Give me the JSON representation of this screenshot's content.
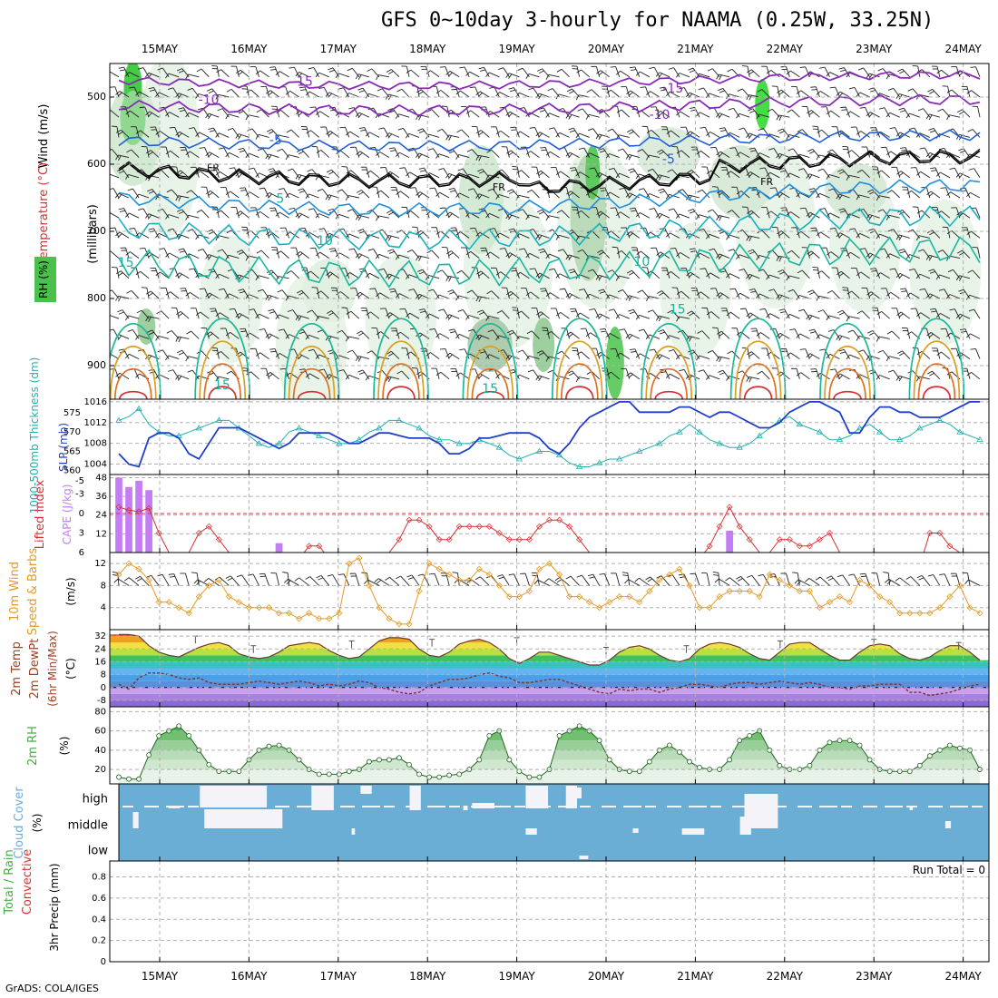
{
  "title": "GFS 0~10day 3-hourly for NAAMA (0.25W, 33.25N)",
  "credit": "GrADS: COLA/IGES",
  "colors": {
    "rh_green": "#3cbf3c",
    "temp_purple": "#8a2bb8",
    "temp_blue": "#1f5fd8",
    "freeze_black": "#000000",
    "slp_blue": "#1f3fc8",
    "thickness_cyan": "#20b0b0",
    "cape_violet": "#c57df5",
    "lifted_red": "#d83030",
    "wind_orange": "#e89a20",
    "cloud_blue": "#6aaed6",
    "cloud_white": "#f4f4f8",
    "rh2m_green": "#40b040"
  },
  "chart_data": [
    {
      "type": "line",
      "panel": "upper-air",
      "xticks": [
        "15MAY",
        "16MAY",
        "17MAY",
        "18MAY",
        "19MAY",
        "20MAY",
        "21MAY",
        "22MAY",
        "23MAY",
        "24MAY"
      ],
      "ylabel": "(millibars)",
      "yticks": [
        500,
        600,
        700,
        800,
        900
      ],
      "ylim": [
        450,
        950
      ],
      "legend": [
        "RH (%)",
        "Temperature (°C)",
        "Wind (m/s)"
      ],
      "isotherm_labels": [
        {
          "text": "-15",
          "x": 2.1,
          "y": 478
        },
        {
          "text": "-15",
          "x": 6.25,
          "y": 488
        },
        {
          "text": "-10",
          "x": 1.05,
          "y": 505
        },
        {
          "text": "-10",
          "x": 6.1,
          "y": 527
        },
        {
          "text": "-5",
          "x": 1.8,
          "y": 565
        },
        {
          "text": "-5",
          "x": 6.2,
          "y": 593
        },
        {
          "text": "FR",
          "x": 1.1,
          "y": 606
        },
        {
          "text": "FR",
          "x": 4.3,
          "y": 635
        },
        {
          "text": "FR",
          "x": 7.3,
          "y": 627
        },
        {
          "text": "5",
          "x": 1.85,
          "y": 652
        },
        {
          "text": "10",
          "x": 2.35,
          "y": 715
        },
        {
          "text": "10",
          "x": 5.9,
          "y": 746
        },
        {
          "text": "15",
          "x": 0.12,
          "y": 747
        },
        {
          "text": "15",
          "x": 6.3,
          "y": 817
        },
        {
          "text": "15",
          "x": 1.2,
          "y": 930
        },
        {
          "text": "15",
          "x": 4.2,
          "y": 935
        }
      ]
    },
    {
      "type": "line",
      "panel": "slp-thickness",
      "ylabel_left": "1000-500mb Thickness (dm)",
      "ylabel_right": "SLP (mb)",
      "slp_ticks": [
        1004,
        1008,
        1012,
        1016
      ],
      "slp_ylim": [
        1002,
        1016.5
      ],
      "thickness_ticks": [
        560,
        565,
        570,
        575
      ],
      "thickness_ylim": [
        559,
        578.5
      ],
      "slp": [
        1006,
        1004,
        1003.5,
        1009,
        1010,
        1010,
        1009,
        1006,
        1005,
        1008,
        1011,
        1011,
        1011,
        1010,
        1009,
        1008,
        1007,
        1008,
        1010,
        1010,
        1010,
        1010,
        1009,
        1008,
        1008,
        1009,
        1010,
        1010,
        1009.5,
        1009,
        1009,
        1009,
        1008,
        1006,
        1006,
        1007,
        1009,
        1009,
        1009.5,
        1010,
        1010,
        1010,
        1009,
        1007,
        1006,
        1008,
        1011,
        1013,
        1014,
        1015,
        1016,
        1016,
        1014,
        1014,
        1014,
        1014,
        1015,
        1015,
        1014,
        1013,
        1014,
        1014,
        1013,
        1012,
        1011,
        1011,
        1012,
        1014,
        1015,
        1016,
        1016,
        1015,
        1014,
        1010,
        1010,
        1013,
        1015,
        1015,
        1014,
        1014,
        1013,
        1013,
        1013,
        1014,
        1015,
        1016,
        1016
      ],
      "thickness": [
        573,
        574,
        576,
        572,
        570,
        569,
        569,
        570,
        571,
        572,
        573,
        573,
        571,
        569,
        567,
        566,
        567,
        570,
        571,
        570,
        569,
        568,
        567,
        567,
        568,
        570,
        571,
        573,
        573,
        572,
        571,
        569,
        568,
        568,
        567,
        567,
        568,
        567,
        566,
        564,
        563,
        564,
        565,
        565,
        564,
        562,
        561,
        561,
        562,
        563,
        563,
        564,
        565,
        566,
        567,
        569,
        570,
        572,
        570,
        568,
        567,
        566,
        566,
        567,
        569,
        571,
        573,
        574,
        572,
        571,
        570,
        568,
        568,
        569,
        571,
        572,
        570,
        568,
        568,
        569,
        571,
        572,
        573,
        572,
        570,
        569,
        568
      ]
    },
    {
      "type": "bar",
      "panel": "cape-lifted",
      "ylabel_left": "Lifted Index",
      "ylabel_right": "CAPE (J/kg)",
      "lifted_ticks": [
        -5,
        -3,
        0,
        3,
        6
      ],
      "lifted_ylim": [
        -6,
        6
      ],
      "cape_ticks": [
        12,
        24,
        36,
        48
      ],
      "cape_ylim": [
        0,
        50
      ],
      "cape": [
        48,
        42,
        46,
        40,
        0,
        0,
        0,
        0,
        0,
        0,
        0,
        0,
        0,
        0,
        0,
        0,
        0,
        0,
        0,
        0,
        0,
        0,
        0,
        0,
        0,
        0,
        0,
        0,
        0,
        0,
        0,
        0,
        0,
        0,
        0,
        0,
        0,
        0,
        0,
        0,
        0,
        0,
        0,
        0,
        0,
        0,
        0,
        0,
        0,
        0,
        0,
        0,
        0,
        0,
        0,
        0,
        0,
        0,
        0,
        0,
        0,
        0,
        0,
        0,
        0,
        0,
        0,
        0,
        0,
        0,
        0,
        0,
        0,
        0,
        0,
        0,
        0,
        0,
        0,
        0,
        0,
        0,
        0,
        0,
        0,
        0,
        0
      ],
      "cape_extra": [
        {
          "i": 16,
          "v": 6
        },
        {
          "i": 61,
          "v": 14
        }
      ],
      "lifted": [
        -1,
        -0.5,
        -0.3,
        -0.8,
        3,
        6,
        7,
        6,
        3,
        2,
        4,
        6,
        7,
        8,
        8,
        8,
        8,
        8,
        7,
        5,
        5,
        7,
        8,
        8,
        8,
        8,
        8,
        6,
        4,
        1,
        1,
        2,
        4,
        4,
        2,
        2,
        2,
        2,
        3,
        4,
        4,
        4,
        2,
        1,
        1,
        2,
        4,
        6,
        6,
        8,
        8,
        8,
        8,
        8,
        8,
        8,
        8,
        8,
        7,
        5,
        2,
        -1,
        2,
        4,
        6,
        6,
        4,
        4,
        5,
        5,
        4,
        3,
        6,
        8,
        8,
        8,
        8,
        8,
        8,
        8,
        8,
        3,
        3,
        5,
        6,
        7,
        7
      ]
    },
    {
      "type": "line",
      "panel": "wind-10m",
      "ylabel": "10m Wind Speed & Barbs (m/s)",
      "yticks": [
        4,
        8,
        12
      ],
      "ylim": [
        0,
        14
      ],
      "speed": [
        10,
        12,
        11,
        9,
        5,
        5,
        4,
        3,
        6,
        8,
        9,
        6,
        5,
        4,
        4,
        4,
        3,
        3,
        2,
        3,
        2,
        2,
        3,
        12,
        13,
        8,
        4,
        2,
        1,
        1,
        7,
        12,
        11,
        10,
        9,
        9,
        11,
        10,
        8,
        6,
        6,
        7,
        11,
        12,
        10,
        6,
        6,
        5,
        4,
        5,
        6,
        6,
        5,
        7,
        9,
        10,
        11,
        8,
        4,
        4,
        6,
        7,
        7,
        7,
        6,
        10,
        9,
        8,
        7,
        7,
        4,
        5,
        6,
        5,
        9,
        8,
        6,
        5,
        3,
        3,
        3,
        3,
        4,
        6,
        8,
        4,
        3
      ]
    },
    {
      "type": "area",
      "panel": "temp-2m",
      "ylabel": "2m Temp 2m DewPt (6hr Min/Max) (°C)",
      "yticks": [
        -8,
        0,
        8,
        16,
        24,
        32
      ],
      "ylim": [
        -12,
        36
      ],
      "temp": [
        33,
        33,
        32,
        26,
        22,
        20,
        19,
        22,
        25,
        27,
        28,
        26,
        21,
        19,
        18,
        19,
        22,
        26,
        27,
        28,
        27,
        23,
        20,
        18,
        19,
        24,
        29,
        31,
        31,
        30,
        24,
        20,
        19,
        22,
        27,
        29,
        30,
        28,
        24,
        18,
        15,
        18,
        22,
        22,
        20,
        18,
        16,
        14,
        14,
        17,
        22,
        25,
        26,
        24,
        20,
        17,
        16,
        18,
        24,
        27,
        28,
        27,
        25,
        21,
        18,
        17,
        22,
        27,
        28,
        28,
        24,
        20,
        17,
        17,
        22,
        26,
        27,
        26,
        21,
        18,
        17,
        19,
        23,
        26,
        26,
        22,
        17
      ],
      "dewpt": [
        2,
        -1,
        6,
        9,
        9,
        8,
        6,
        5,
        6,
        3,
        2,
        2,
        2,
        3,
        4,
        3,
        2,
        3,
        4,
        3,
        1,
        2,
        1,
        2,
        4,
        3,
        0,
        -1,
        -3,
        -4,
        -3,
        1,
        3,
        5,
        5,
        6,
        8,
        9,
        7,
        6,
        3,
        3,
        4,
        5,
        5,
        3,
        1,
        -1,
        -3,
        -4,
        -1,
        -2,
        -1,
        -1,
        -3,
        -1,
        0,
        2,
        2,
        1,
        0,
        2,
        3,
        3,
        2,
        3,
        4,
        3,
        2,
        3,
        2,
        0,
        0,
        -1,
        1,
        1,
        2,
        2,
        2,
        -3,
        -3,
        -5,
        -4,
        -3,
        -1,
        1,
        2
      ],
      "max_markers": [
        {
          "x": 0.9,
          "v": 32
        },
        {
          "x": 1.55,
          "v": 26
        },
        {
          "x": 2.65,
          "v": 29
        },
        {
          "x": 3.55,
          "v": 30
        },
        {
          "x": 4.5,
          "v": 31
        },
        {
          "x": 5.5,
          "v": 25
        },
        {
          "x": 6.4,
          "v": 26
        },
        {
          "x": 7.45,
          "v": 29
        },
        {
          "x": 8.5,
          "v": 30
        },
        {
          "x": 9.45,
          "v": 28
        }
      ]
    },
    {
      "type": "area",
      "panel": "rh-2m",
      "ylabel": "2m RH (%)",
      "yticks": [
        20,
        40,
        60,
        80
      ],
      "ylim": [
        5,
        85
      ],
      "rh": [
        12,
        10,
        10,
        35,
        55,
        60,
        65,
        55,
        40,
        25,
        18,
        18,
        18,
        30,
        40,
        44,
        45,
        40,
        30,
        20,
        15,
        15,
        15,
        18,
        20,
        28,
        30,
        30,
        32,
        25,
        15,
        12,
        12,
        14,
        15,
        20,
        30,
        55,
        60,
        30,
        18,
        12,
        12,
        20,
        55,
        60,
        65,
        60,
        50,
        30,
        20,
        18,
        18,
        28,
        40,
        45,
        38,
        28,
        22,
        20,
        20,
        30,
        50,
        55,
        60,
        40,
        24,
        20,
        20,
        24,
        40,
        48,
        50,
        50,
        45,
        30,
        20,
        18,
        18,
        18,
        24,
        34,
        40,
        45,
        42,
        40,
        20
      ]
    },
    {
      "type": "heatmap",
      "panel": "cloud-cover",
      "ylabel": "Cloud Cover (%)",
      "layers": [
        "high",
        "middle",
        "low"
      ]
    },
    {
      "type": "bar",
      "panel": "precip",
      "ylabel": "3hr Precip (mm)",
      "legend": [
        "Total / Rain",
        "Convective"
      ],
      "yticks": [
        0,
        0.2,
        0.4,
        0.6,
        0.8
      ],
      "ylim": [
        0,
        0.95
      ],
      "annotation": "Run Total = 0"
    }
  ]
}
